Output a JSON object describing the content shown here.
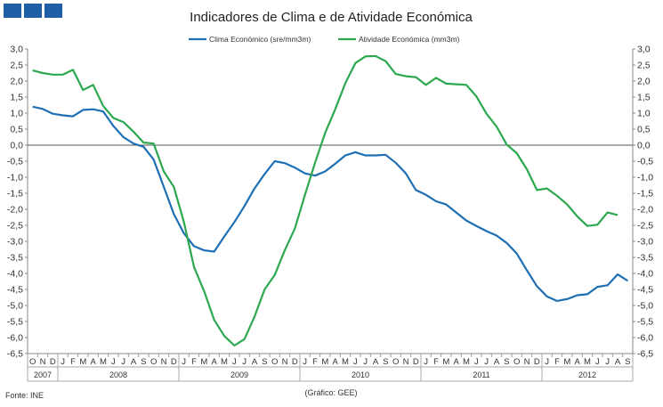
{
  "chart_data": {
    "type": "line",
    "title": "Indicadores de Clima  e de Atividade Económica",
    "source": "Fonte: INE",
    "credit": "(Gráfico:  GEE)",
    "ylim": [
      -6.5,
      3.0
    ],
    "yticks": [
      "3,0",
      "2,5",
      "2,0",
      "1,5",
      "1,0",
      "0,5",
      "0,0",
      "-0,5",
      "-1,0",
      "-1,5",
      "-2,0",
      "-2,5",
      "-3,0",
      "-3,5",
      "-4,0",
      "-4,5",
      "-5,0",
      "-5,5",
      "-6,0",
      "-6,5"
    ],
    "ytick_values": [
      3.0,
      2.5,
      2.0,
      1.5,
      1.0,
      0.5,
      0.0,
      -0.5,
      -1.0,
      -1.5,
      -2.0,
      -2.5,
      -3.0,
      -3.5,
      -4.0,
      -4.5,
      -5.0,
      -5.5,
      -6.0,
      -6.5
    ],
    "month_labels": [
      "O",
      "N",
      "D",
      "J",
      "F",
      "M",
      "A",
      "M",
      "J",
      "J",
      "A",
      "S",
      "O",
      "N",
      "D",
      "J",
      "F",
      "M",
      "A",
      "M",
      "J",
      "J",
      "A",
      "S",
      "O",
      "N",
      "D",
      "J",
      "F",
      "M",
      "A",
      "M",
      "J",
      "J",
      "A",
      "S",
      "O",
      "N",
      "D",
      "J",
      "F",
      "M",
      "A",
      "M",
      "J",
      "J",
      "A",
      "S",
      "O",
      "N",
      "D",
      "J",
      "F",
      "M",
      "A",
      "M",
      "J",
      "J",
      "A",
      "S"
    ],
    "years": [
      {
        "label": "2007",
        "start": 0,
        "count": 3
      },
      {
        "label": "2008",
        "start": 3,
        "count": 12
      },
      {
        "label": "2009",
        "start": 15,
        "count": 12
      },
      {
        "label": "2010",
        "start": 27,
        "count": 12
      },
      {
        "label": "2011",
        "start": 39,
        "count": 12
      },
      {
        "label": "2012",
        "start": 51,
        "count": 9
      }
    ],
    "series": [
      {
        "name": "Clima Económico (sre/mm3m)",
        "color": "#1f6fb4",
        "values": [
          1.2,
          1.13,
          0.98,
          0.93,
          0.9,
          1.1,
          1.12,
          1.05,
          0.6,
          0.25,
          0.05,
          -0.05,
          -0.45,
          -1.3,
          -2.15,
          -2.75,
          -3.15,
          -3.28,
          -3.32,
          -2.85,
          -2.4,
          -1.9,
          -1.35,
          -0.9,
          -0.5,
          -0.56,
          -0.7,
          -0.88,
          -0.95,
          -0.82,
          -0.58,
          -0.32,
          -0.22,
          -0.32,
          -0.32,
          -0.3,
          -0.55,
          -0.88,
          -1.4,
          -1.55,
          -1.75,
          -1.85,
          -2.1,
          -2.35,
          -2.52,
          -2.68,
          -2.82,
          -3.05,
          -3.38,
          -3.9,
          -4.4,
          -4.72,
          -4.86,
          -4.8,
          -4.68,
          -4.65,
          -4.42,
          -4.37,
          -4.03,
          -4.23
        ]
      },
      {
        "name": "Atividade Económica (mm3m)",
        "color": "#2ca84f",
        "values": [
          2.33,
          2.25,
          2.2,
          2.2,
          2.35,
          1.72,
          1.88,
          1.22,
          0.85,
          0.72,
          0.42,
          0.08,
          0.05,
          -0.82,
          -1.3,
          -2.4,
          -3.8,
          -4.55,
          -5.45,
          -5.95,
          -6.25,
          -6.05,
          -5.35,
          -4.5,
          -4.05,
          -3.28,
          -2.6,
          -1.55,
          -0.55,
          0.38,
          1.12,
          1.93,
          2.56,
          2.77,
          2.78,
          2.62,
          2.22,
          2.15,
          2.12,
          1.88,
          2.1,
          1.92,
          1.9,
          1.88,
          1.52,
          0.98,
          0.58,
          0.02,
          -0.25,
          -0.75,
          -1.4,
          -1.35,
          -1.58,
          -1.85,
          -2.22,
          -2.52,
          -2.48,
          -2.1,
          -2.18,
          null
        ]
      }
    ]
  }
}
